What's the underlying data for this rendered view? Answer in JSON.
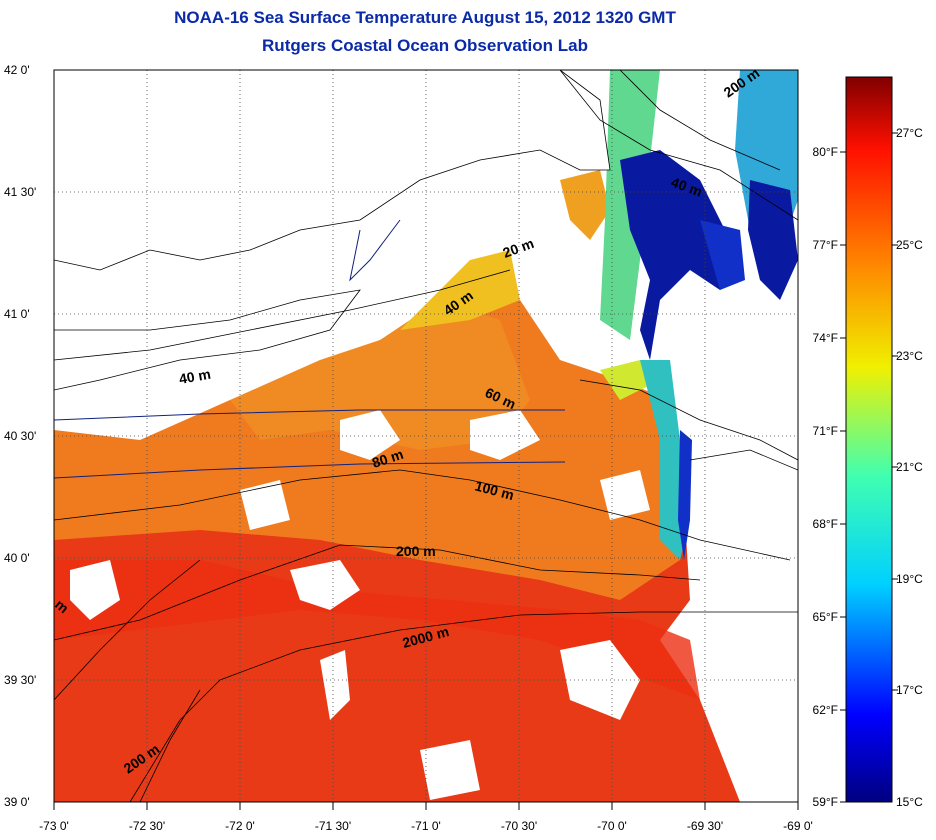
{
  "title": "NOAA-16 Sea Surface Temperature August 15, 2012 1320 GMT",
  "subtitle": "Rutgers Coastal Ocean Observation Lab",
  "lon_ticks": [
    "-73 0'",
    "-72 30'",
    "-72 0'",
    "-71 30'",
    "-71 0'",
    "-70 30'",
    "-70 0'",
    "-69 30'",
    "-69 0'"
  ],
  "lat_ticks": [
    "42 0'",
    "41 30'",
    "41 0'",
    "40 30'",
    "40 0'",
    "39 30'",
    "39 0'"
  ],
  "isobath_labels": [
    "200 m",
    "40 m",
    "20 m",
    "40 m",
    "40 m",
    "60 m",
    "80 m",
    "100 m",
    "200 m",
    "2000 m",
    "200 m",
    "m"
  ],
  "colorbar": {
    "fahrenheit": [
      "80°F",
      "77°F",
      "74°F",
      "71°F",
      "68°F",
      "65°F",
      "62°F",
      "59°F"
    ],
    "celsius": [
      "27°C",
      "25°C",
      "23°C",
      "21°C",
      "19°C",
      "17°C",
      "15°C"
    ]
  },
  "colors": {
    "title": "#0a2aa8",
    "warm": "#e82a14",
    "orange": "#f07a1e",
    "yellow": "#f0e020",
    "cool": "#20c8b0",
    "cold": "#0a1aa0"
  }
}
